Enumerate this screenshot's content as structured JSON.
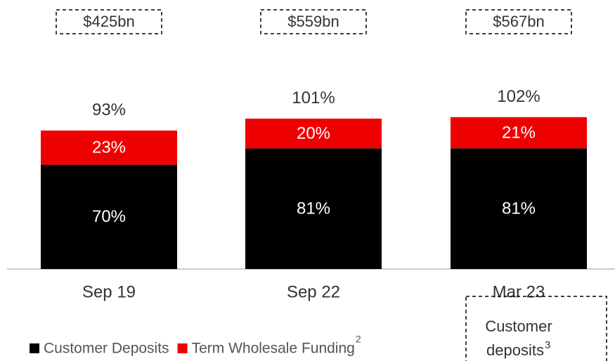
{
  "chart_data": {
    "type": "stacked_bar",
    "categories": [
      "Sep 19",
      "Sep 22",
      "Mar 23"
    ],
    "series": [
      {
        "name": "Customer Deposits",
        "color": "#000000",
        "values": [
          70,
          81,
          81
        ],
        "value_labels": [
          "70%",
          "81%",
          "81%"
        ]
      },
      {
        "name": "Term Wholesale Funding",
        "footnote": "2",
        "color": "#ee0000",
        "values": [
          23,
          20,
          21
        ],
        "value_labels": [
          "23%",
          "20%",
          "21%"
        ]
      }
    ],
    "totals": {
      "values": [
        93,
        101,
        102
      ],
      "value_labels": [
        "93%",
        "101%",
        "102%"
      ]
    },
    "box_labels": [
      "$425bn",
      "$559bn",
      "$567bn"
    ],
    "annotation": {
      "lines": [
        "Customer",
        "deposits"
      ],
      "footnote": "3"
    },
    "legend": "bottom-left"
  }
}
